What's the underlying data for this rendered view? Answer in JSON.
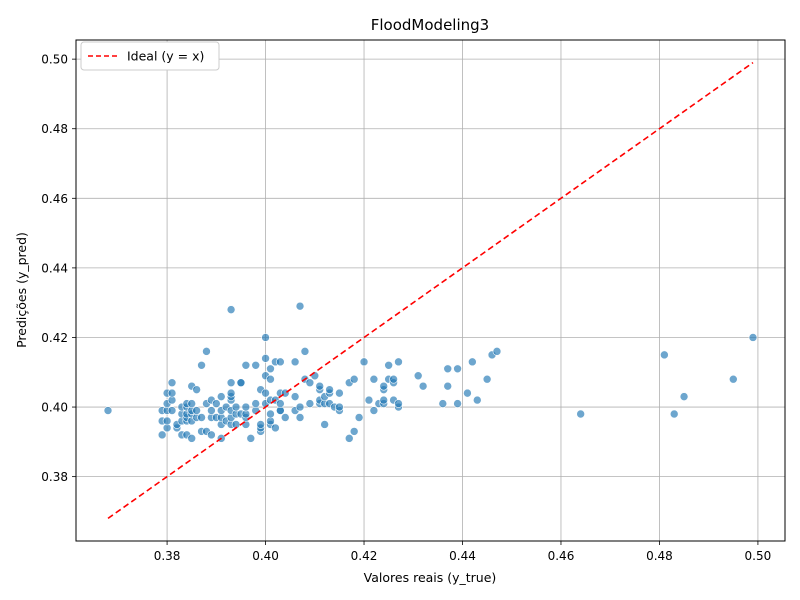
{
  "chart_data": {
    "type": "scatter",
    "title": "FloodModeling3",
    "xlabel": "Valores reais (y_true)",
    "ylabel": "Predições (y_pred)",
    "xlim": [
      0.3615,
      0.5055
    ],
    "ylim": [
      0.3615,
      0.5055
    ],
    "xticks": [
      "0.38",
      "0.40",
      "0.42",
      "0.44",
      "0.46",
      "0.48",
      "0.50"
    ],
    "yticks": [
      "0.38",
      "0.40",
      "0.42",
      "0.44",
      "0.46",
      "0.48",
      "0.50"
    ],
    "grid": true,
    "legend": {
      "position": "top-left",
      "entries": [
        "Ideal (y = x)"
      ]
    },
    "colors": {
      "points": "#1f77b4",
      "ideal_line": "#ff0000"
    },
    "ideal_line": {
      "x": [
        0.368,
        0.499
      ],
      "y": [
        0.368,
        0.499
      ]
    },
    "points": [
      [
        0.368,
        0.399
      ],
      [
        0.379,
        0.392
      ],
      [
        0.379,
        0.396
      ],
      [
        0.379,
        0.399
      ],
      [
        0.38,
        0.394
      ],
      [
        0.38,
        0.396
      ],
      [
        0.38,
        0.399
      ],
      [
        0.38,
        0.401
      ],
      [
        0.38,
        0.404
      ],
      [
        0.381,
        0.399
      ],
      [
        0.381,
        0.402
      ],
      [
        0.381,
        0.404
      ],
      [
        0.381,
        0.407
      ],
      [
        0.382,
        0.394
      ],
      [
        0.382,
        0.395
      ],
      [
        0.383,
        0.392
      ],
      [
        0.383,
        0.396
      ],
      [
        0.383,
        0.398
      ],
      [
        0.383,
        0.4
      ],
      [
        0.384,
        0.392
      ],
      [
        0.384,
        0.396
      ],
      [
        0.384,
        0.397
      ],
      [
        0.384,
        0.398
      ],
      [
        0.384,
        0.4
      ],
      [
        0.384,
        0.401
      ],
      [
        0.385,
        0.391
      ],
      [
        0.385,
        0.396
      ],
      [
        0.385,
        0.398
      ],
      [
        0.385,
        0.399
      ],
      [
        0.385,
        0.401
      ],
      [
        0.385,
        0.406
      ],
      [
        0.386,
        0.397
      ],
      [
        0.386,
        0.399
      ],
      [
        0.386,
        0.405
      ],
      [
        0.387,
        0.393
      ],
      [
        0.387,
        0.397
      ],
      [
        0.387,
        0.412
      ],
      [
        0.388,
        0.393
      ],
      [
        0.388,
        0.401
      ],
      [
        0.388,
        0.416
      ],
      [
        0.389,
        0.392
      ],
      [
        0.389,
        0.397
      ],
      [
        0.389,
        0.399
      ],
      [
        0.389,
        0.402
      ],
      [
        0.39,
        0.397
      ],
      [
        0.39,
        0.401
      ],
      [
        0.391,
        0.391
      ],
      [
        0.391,
        0.395
      ],
      [
        0.391,
        0.397
      ],
      [
        0.391,
        0.399
      ],
      [
        0.391,
        0.403
      ],
      [
        0.392,
        0.396
      ],
      [
        0.392,
        0.4
      ],
      [
        0.393,
        0.395
      ],
      [
        0.393,
        0.397
      ],
      [
        0.393,
        0.399
      ],
      [
        0.393,
        0.402
      ],
      [
        0.393,
        0.403
      ],
      [
        0.393,
        0.404
      ],
      [
        0.393,
        0.407
      ],
      [
        0.393,
        0.428
      ],
      [
        0.394,
        0.395
      ],
      [
        0.394,
        0.398
      ],
      [
        0.394,
        0.4
      ],
      [
        0.395,
        0.398
      ],
      [
        0.395,
        0.407
      ],
      [
        0.395,
        0.407
      ],
      [
        0.396,
        0.395
      ],
      [
        0.396,
        0.397
      ],
      [
        0.396,
        0.398
      ],
      [
        0.396,
        0.4
      ],
      [
        0.396,
        0.412
      ],
      [
        0.397,
        0.391
      ],
      [
        0.398,
        0.399
      ],
      [
        0.398,
        0.401
      ],
      [
        0.398,
        0.412
      ],
      [
        0.399,
        0.393
      ],
      [
        0.399,
        0.394
      ],
      [
        0.399,
        0.395
      ],
      [
        0.399,
        0.405
      ],
      [
        0.4,
        0.401
      ],
      [
        0.4,
        0.404
      ],
      [
        0.4,
        0.409
      ],
      [
        0.4,
        0.414
      ],
      [
        0.4,
        0.42
      ],
      [
        0.401,
        0.395
      ],
      [
        0.401,
        0.396
      ],
      [
        0.401,
        0.398
      ],
      [
        0.401,
        0.402
      ],
      [
        0.401,
        0.408
      ],
      [
        0.401,
        0.411
      ],
      [
        0.402,
        0.394
      ],
      [
        0.402,
        0.402
      ],
      [
        0.402,
        0.413
      ],
      [
        0.403,
        0.399
      ],
      [
        0.403,
        0.399
      ],
      [
        0.403,
        0.401
      ],
      [
        0.403,
        0.404
      ],
      [
        0.403,
        0.413
      ],
      [
        0.404,
        0.397
      ],
      [
        0.404,
        0.404
      ],
      [
        0.406,
        0.399
      ],
      [
        0.406,
        0.403
      ],
      [
        0.406,
        0.413
      ],
      [
        0.407,
        0.397
      ],
      [
        0.407,
        0.4
      ],
      [
        0.407,
        0.429
      ],
      [
        0.408,
        0.408
      ],
      [
        0.408,
        0.416
      ],
      [
        0.409,
        0.401
      ],
      [
        0.409,
        0.407
      ],
      [
        0.41,
        0.409
      ],
      [
        0.411,
        0.401
      ],
      [
        0.411,
        0.402
      ],
      [
        0.411,
        0.405
      ],
      [
        0.411,
        0.406
      ],
      [
        0.412,
        0.395
      ],
      [
        0.412,
        0.401
      ],
      [
        0.412,
        0.403
      ],
      [
        0.413,
        0.401
      ],
      [
        0.413,
        0.404
      ],
      [
        0.413,
        0.405
      ],
      [
        0.414,
        0.4
      ],
      [
        0.415,
        0.399
      ],
      [
        0.415,
        0.4
      ],
      [
        0.415,
        0.404
      ],
      [
        0.417,
        0.391
      ],
      [
        0.417,
        0.407
      ],
      [
        0.418,
        0.393
      ],
      [
        0.418,
        0.408
      ],
      [
        0.419,
        0.397
      ],
      [
        0.42,
        0.413
      ],
      [
        0.421,
        0.402
      ],
      [
        0.422,
        0.399
      ],
      [
        0.422,
        0.408
      ],
      [
        0.423,
        0.401
      ],
      [
        0.424,
        0.401
      ],
      [
        0.424,
        0.402
      ],
      [
        0.424,
        0.405
      ],
      [
        0.424,
        0.406
      ],
      [
        0.425,
        0.408
      ],
      [
        0.425,
        0.412
      ],
      [
        0.426,
        0.402
      ],
      [
        0.426,
        0.407
      ],
      [
        0.426,
        0.408
      ],
      [
        0.427,
        0.4
      ],
      [
        0.427,
        0.401
      ],
      [
        0.427,
        0.413
      ],
      [
        0.431,
        0.409
      ],
      [
        0.432,
        0.406
      ],
      [
        0.436,
        0.401
      ],
      [
        0.437,
        0.406
      ],
      [
        0.437,
        0.411
      ],
      [
        0.439,
        0.401
      ],
      [
        0.439,
        0.411
      ],
      [
        0.441,
        0.404
      ],
      [
        0.442,
        0.413
      ],
      [
        0.443,
        0.402
      ],
      [
        0.445,
        0.408
      ],
      [
        0.446,
        0.415
      ],
      [
        0.447,
        0.416
      ],
      [
        0.464,
        0.398
      ],
      [
        0.481,
        0.415
      ],
      [
        0.483,
        0.398
      ],
      [
        0.485,
        0.403
      ],
      [
        0.495,
        0.408
      ],
      [
        0.499,
        0.42
      ]
    ]
  }
}
